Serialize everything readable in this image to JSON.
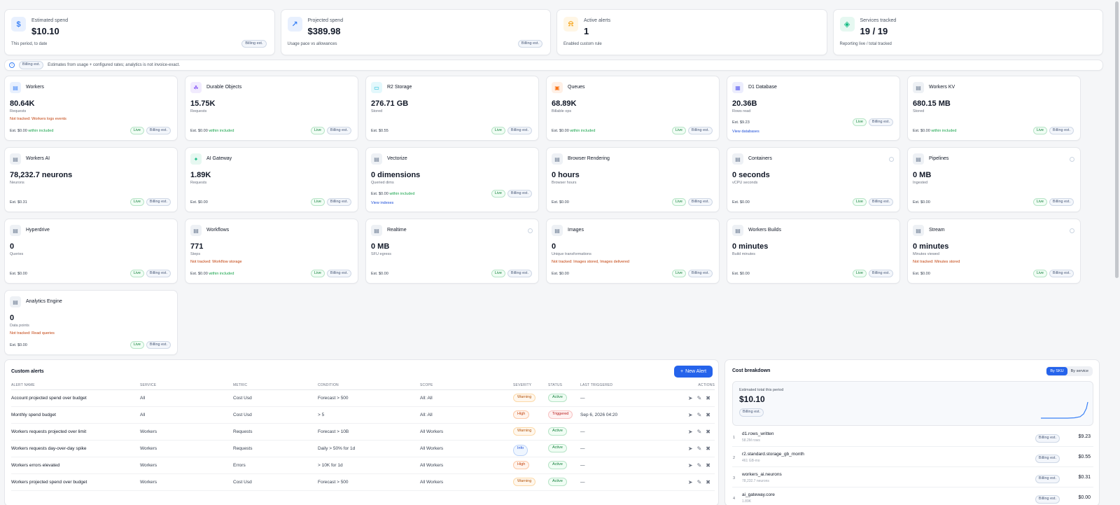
{
  "summary": [
    {
      "label": "Estimated spend",
      "value": "$10.10",
      "sub": "This period, to date",
      "pill": "Billing est.",
      "icon": "dollar-icon",
      "color": "#3b82f6",
      "bg": "#e8f0fe"
    },
    {
      "label": "Projected spend",
      "value": "$389.98",
      "sub": "Usage pace vs allowances",
      "pill": "Billing est.",
      "icon": "trend-up-icon",
      "color": "#3b82f6",
      "bg": "#e8f0fe"
    },
    {
      "label": "Active alerts",
      "value": "1",
      "sub": "Enabled custom rule",
      "pill": "",
      "icon": "bell-icon",
      "color": "#f59e0b",
      "bg": "#fff6e5"
    },
    {
      "label": "Services tracked",
      "value": "19 / 19",
      "sub": "Reporting live / total tracked",
      "pill": "",
      "icon": "layers-icon",
      "color": "#10b981",
      "bg": "#e6f8f1"
    }
  ],
  "info_bar": {
    "pill": "Billing est.",
    "text": "Estimates from usage + configured rates; analytics is not invoice-exact."
  },
  "services": [
    {
      "name": "Workers",
      "value": "80.64K",
      "unit": "Requests",
      "warn": "Not tracked: Workers logs events",
      "est": "Est. $0.00",
      "inc": "within included",
      "link": "",
      "live": "Live",
      "billing": "Billing est.",
      "icon": "workers-icon",
      "color": "#3b82f6",
      "bg": "#e8f0fe"
    },
    {
      "name": "Durable Objects",
      "value": "15.75K",
      "unit": "Requests",
      "warn": "",
      "est": "Est. $0.00",
      "inc": "within included",
      "link": "",
      "live": "Live",
      "billing": "Billing est.",
      "icon": "durable-objects-icon",
      "color": "#8b5cf6",
      "bg": "#f1ebfe"
    },
    {
      "name": "R2 Storage",
      "value": "276.71 GB",
      "unit": "Stored",
      "warn": "",
      "est": "Est. $0.55",
      "inc": "",
      "link": "",
      "live": "Live",
      "billing": "Billing est.",
      "icon": "r2-storage-icon",
      "color": "#06b6d4",
      "bg": "#e3f8fc"
    },
    {
      "name": "Queues",
      "value": "68.89K",
      "unit": "Billable ops",
      "warn": "",
      "est": "Est. $0.00",
      "inc": "within included",
      "link": "",
      "live": "Live",
      "billing": "Billing est.",
      "icon": "queues-icon",
      "color": "#f97316",
      "bg": "#fff0e6"
    },
    {
      "name": "D1 Database",
      "value": "20.36B",
      "unit": "Rows read",
      "warn": "",
      "est": "Est. $9.23",
      "inc": "",
      "link": "View databases",
      "live": "Live",
      "billing": "Billing est.",
      "icon": "database-icon",
      "color": "#6366f1",
      "bg": "#ecedfd"
    },
    {
      "name": "Workers KV",
      "value": "680.15 MB",
      "unit": "Stored",
      "warn": "",
      "est": "Est. $0.00",
      "inc": "within included",
      "link": "",
      "live": "Live",
      "billing": "Billing est.",
      "icon": "kv-icon",
      "color": "#64748b",
      "bg": "#eef1f5"
    },
    {
      "name": "Workers AI",
      "value": "78,232.7 neurons",
      "unit": "Neurons",
      "warn": "",
      "est": "Est. $0.31",
      "inc": "",
      "link": "",
      "live": "Live",
      "billing": "Billing est.",
      "icon": "workers-ai-icon",
      "color": "#64748b",
      "bg": "#eef1f5"
    },
    {
      "name": "AI Gateway",
      "value": "1.89K",
      "unit": "Requests",
      "warn": "",
      "est": "Est. $0.00",
      "inc": "",
      "link": "",
      "live": "Live",
      "billing": "Billing est.",
      "icon": "ai-gateway-icon",
      "color": "#10b981",
      "bg": "#e6f8f1"
    },
    {
      "name": "Vectorize",
      "value": "0 dimensions",
      "unit": "Queried dims",
      "warn": "",
      "est": "Est. $0.00",
      "inc": "within included",
      "link": "View indexes",
      "live": "Live",
      "billing": "Billing est.",
      "icon": "vectorize-icon",
      "color": "#64748b",
      "bg": "#eef1f5"
    },
    {
      "name": "Browser Rendering",
      "value": "0 hours",
      "unit": "Browser hours",
      "warn": "",
      "est": "Est. $0.00",
      "inc": "",
      "link": "",
      "live": "Live",
      "billing": "Billing est.",
      "icon": "browser-icon",
      "color": "#64748b",
      "bg": "#eef1f5"
    },
    {
      "name": "Containers",
      "value": "0 seconds",
      "unit": "vCPU seconds",
      "warn": "",
      "est": "Est. $0.00",
      "inc": "",
      "link": "",
      "live": "Live",
      "billing": "Billing est.",
      "icon": "containers-icon",
      "color": "#64748b",
      "bg": "#eef1f5",
      "dot": true
    },
    {
      "name": "Pipelines",
      "value": "0 MB",
      "unit": "Ingested",
      "warn": "",
      "est": "Est. $0.00",
      "inc": "",
      "link": "",
      "live": "Live",
      "billing": "Billing est.",
      "icon": "pipelines-icon",
      "color": "#64748b",
      "bg": "#eef1f5",
      "dot": true
    },
    {
      "name": "Hyperdrive",
      "value": "0",
      "unit": "Queries",
      "warn": "",
      "est": "Est. $0.00",
      "inc": "",
      "link": "",
      "live": "Live",
      "billing": "Billing est.",
      "icon": "hyperdrive-icon",
      "color": "#64748b",
      "bg": "#eef1f5"
    },
    {
      "name": "Workflows",
      "value": "771",
      "unit": "Steps",
      "warn": "Not tracked: Workflow storage",
      "est": "Est. $0.00",
      "inc": "within included",
      "link": "",
      "live": "Live",
      "billing": "Billing est.",
      "icon": "workflows-icon",
      "color": "#64748b",
      "bg": "#eef1f5"
    },
    {
      "name": "Realtime",
      "value": "0 MB",
      "unit": "SFU egress",
      "warn": "",
      "est": "Est. $0.00",
      "inc": "",
      "link": "",
      "live": "Live",
      "billing": "Billing est.",
      "icon": "realtime-icon",
      "color": "#64748b",
      "bg": "#eef1f5",
      "dot": true
    },
    {
      "name": "Images",
      "value": "0",
      "unit": "Unique transformations",
      "warn": "Not tracked: Images stored, Images delivered",
      "est": "Est. $0.00",
      "inc": "",
      "link": "",
      "live": "Live",
      "billing": "Billing est.",
      "icon": "images-icon",
      "color": "#64748b",
      "bg": "#eef1f5"
    },
    {
      "name": "Workers Builds",
      "value": "0 minutes",
      "unit": "Build minutes",
      "warn": "",
      "est": "Est. $0.00",
      "inc": "",
      "link": "",
      "live": "Live",
      "billing": "Billing est.",
      "icon": "builds-icon",
      "color": "#64748b",
      "bg": "#eef1f5"
    },
    {
      "name": "Stream",
      "value": "0 minutes",
      "unit": "Minutes viewed",
      "warn": "Not tracked: Minutes stored",
      "est": "Est. $0.00",
      "inc": "",
      "link": "",
      "live": "Live",
      "billing": "Billing est.",
      "icon": "stream-icon",
      "color": "#64748b",
      "bg": "#eef1f5",
      "dot": true
    },
    {
      "name": "Analytics Engine",
      "value": "0",
      "unit": "Data points",
      "warn": "Not tracked: Read queries",
      "est": "Est. $0.00",
      "inc": "",
      "link": "",
      "live": "Live",
      "billing": "Billing est.",
      "icon": "analytics-icon",
      "color": "#64748b",
      "bg": "#eef1f5"
    }
  ],
  "alerts": {
    "title": "Custom alerts",
    "new_button": "New Alert",
    "columns": [
      "ALERT NAME",
      "SERVICE",
      "METRIC",
      "CONDITION",
      "SCOPE",
      "SEVERITY",
      "STATUS",
      "LAST TRIGGERED",
      "ACTIONS"
    ],
    "rows": [
      {
        "name": "Account projected spend over budget",
        "service": "All",
        "metric": "Cost Usd",
        "condition": "Forecast > 500",
        "scope": "All: All",
        "severity": "Warning",
        "sev": "warning",
        "status": "Active",
        "st": "active",
        "last": "—"
      },
      {
        "name": "Monthly spend budget",
        "service": "All",
        "metric": "Cost Usd",
        "condition": "> 5",
        "scope": "All: All",
        "severity": "High",
        "sev": "high",
        "status": "Triggered",
        "st": "triggered",
        "last": "Sep 6, 2026 04:20"
      },
      {
        "name": "Workers requests projected over limit",
        "service": "Workers",
        "metric": "Requests",
        "condition": "Forecast > 10B",
        "scope": "All Workers",
        "severity": "Warning",
        "sev": "warning",
        "status": "Active",
        "st": "active",
        "last": "—"
      },
      {
        "name": "Workers requests day-over-day spike",
        "service": "Workers",
        "metric": "Requests",
        "condition": "Daily > 50% for 1d",
        "scope": "All Workers",
        "severity": "Info",
        "sev": "info",
        "status": "Active",
        "st": "active",
        "last": "—"
      },
      {
        "name": "Workers errors elevated",
        "service": "Workers",
        "metric": "Errors",
        "condition": "> 10K for 1d",
        "scope": "All Workers",
        "severity": "High",
        "sev": "high",
        "status": "Active",
        "st": "active",
        "last": "—"
      },
      {
        "name": "Workers projected spend over budget",
        "service": "Workers",
        "metric": "Cost Usd",
        "condition": "Forecast > 500",
        "scope": "All Workers",
        "severity": "Warning",
        "sev": "warning",
        "status": "Active",
        "st": "active",
        "last": "—"
      }
    ]
  },
  "cost": {
    "title": "Cost breakdown",
    "tabs": [
      "By SKU",
      "By service"
    ],
    "total_label": "Estimated total this period",
    "total_value": "$10.10",
    "total_pill": "Billing est.",
    "skus": [
      {
        "n": "1",
        "name": "d1.rows_written",
        "units": "58.2M rows",
        "pill": "Billing est.",
        "amount": "$9.23"
      },
      {
        "n": "2",
        "name": "r2.standard.storage_gb_month",
        "units": "461 GB-mo",
        "pill": "Billing est.",
        "amount": "$0.55"
      },
      {
        "n": "3",
        "name": "workers_ai.neurons",
        "units": "78,232.7 neurons",
        "pill": "Billing est.",
        "amount": "$0.31"
      },
      {
        "n": "4",
        "name": "ai_gateway.core",
        "units": "1.89K",
        "pill": "Billing est.",
        "amount": "$0.00"
      }
    ]
  }
}
